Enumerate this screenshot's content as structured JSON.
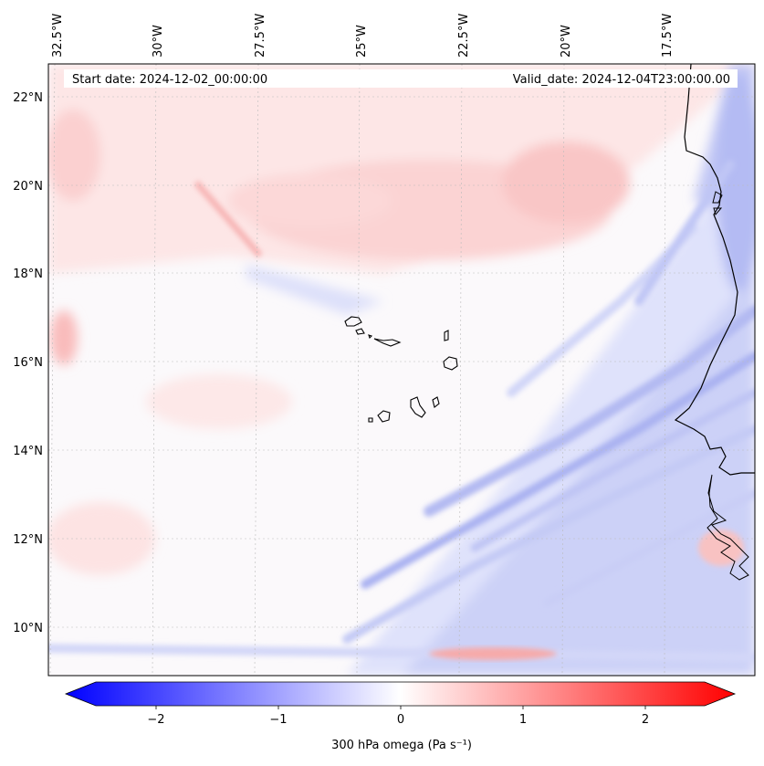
{
  "map": {
    "header": {
      "start_date": "Start date: 2024-12-02_00:00:00",
      "valid_date": "Valid_date: 2024-12-04T23:00:00.00"
    },
    "lon_labels": [
      "32.5°W",
      "30°W",
      "27.5°W",
      "25°W",
      "22.5°W",
      "20°W",
      "17.5°W"
    ],
    "lat_labels": [
      "22°N",
      "20°N",
      "18°N",
      "16°N",
      "14°N",
      "12°N",
      "10°N"
    ],
    "lon_range_deg_w": [
      32.6,
      15.4
    ],
    "lat_range_deg_n": [
      8.9,
      22.8
    ],
    "islands": [
      "Santo Antão",
      "São Vicente",
      "Santa Luzia",
      "São Nicolau",
      "Sal",
      "Boa Vista",
      "Maio",
      "Santiago",
      "Fogo",
      "Brava"
    ]
  },
  "colorbar": {
    "label": "300 hPa omega (Pa s⁻¹)",
    "ticks": [
      "−2",
      "−1",
      "0",
      "1",
      "2"
    ],
    "range": [
      -2.5,
      2.5
    ],
    "colors": {
      "negative": "#0000ff",
      "zero": "#ffffff",
      "positive": "#ff0000"
    }
  }
}
